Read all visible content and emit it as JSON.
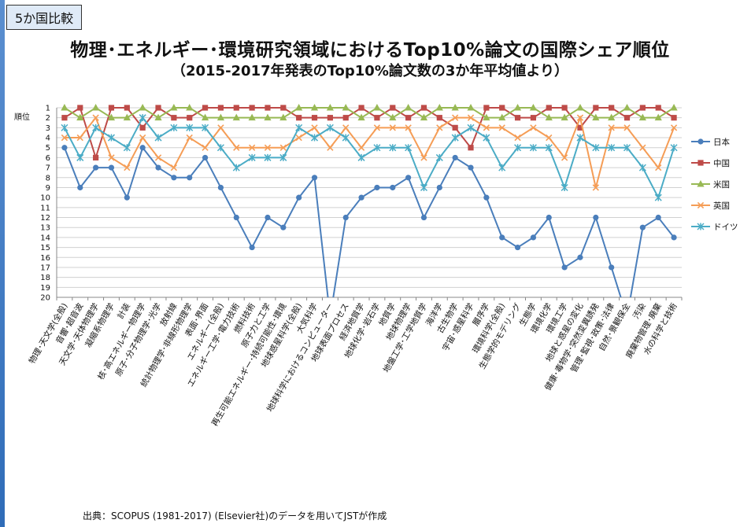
{
  "header": {
    "tag": "5か国比較",
    "title": "物理･エネルギー･環境研究領域におけるTop10%論文の国際シェア順位",
    "subtitle": "（2015-2017年発表のTop10%論文数の3か年平均値より）"
  },
  "footer": {
    "source": "出典：SCOPUS (1981-2017) (Elsevier社)のデータを用いてJSTが作成"
  },
  "chart_data": {
    "type": "line",
    "ylabel": "順位",
    "ylim": [
      1,
      20
    ],
    "y_inverted": true,
    "y_ticks": [
      1,
      2,
      3,
      4,
      5,
      6,
      7,
      8,
      9,
      10,
      11,
      12,
      13,
      14,
      15,
      16,
      17,
      18,
      19,
      20
    ],
    "grid": true,
    "legend_position": "right",
    "categories": [
      "物理･天文学(全般)",
      "音響･超音波",
      "天文学･天体物理学",
      "凝縮系物理学",
      "計装",
      "核･高エネルギー物理学",
      "原子･分子物理学･光学",
      "放射線",
      "統計物理学･非線形物理学",
      "表面･界面",
      "エネルギー(全般)",
      "エネルギー工学･電力技術",
      "燃料技術",
      "原子力と工学",
      "再生可能エネルギー･持続可能性･環境",
      "地球惑星科学(全般)",
      "大気科学",
      "地球科学におけるコンピューター",
      "地球表面プロセス",
      "経済地質学",
      "地球化学･岩石学",
      "地質学",
      "地球物理学",
      "地盤工学･工学地質学",
      "海洋学",
      "古生物学",
      "宇宙･惑星科学",
      "層序学",
      "環境科学(全般)",
      "生態学的モデリング",
      "生態学",
      "環境化学",
      "環境工学",
      "地球と惑星の変化",
      "健康･毒物学･突然変異誘発",
      "管理･監視･政策･法律",
      "自然･景観保全",
      "汚染",
      "廃棄物管理･廃棄",
      "水の科学と技術"
    ],
    "series": [
      {
        "name": "日本",
        "color": "#4a7ebb",
        "marker": "circle",
        "values": [
          5,
          9,
          7,
          7,
          10,
          5,
          7,
          8,
          8,
          6,
          9,
          12,
          15,
          12,
          13,
          10,
          8,
          22,
          12,
          10,
          9,
          9,
          8,
          12,
          9,
          6,
          7,
          10,
          14,
          15,
          14,
          12,
          17,
          16,
          12,
          17,
          22,
          13,
          12,
          14
        ]
      },
      {
        "name": "中国",
        "color": "#be4b48",
        "marker": "square",
        "values": [
          2,
          1,
          6,
          1,
          1,
          3,
          1,
          2,
          2,
          1,
          1,
          1,
          1,
          1,
          1,
          2,
          2,
          2,
          2,
          1,
          2,
          1,
          2,
          1,
          2,
          3,
          5,
          1,
          1,
          2,
          2,
          1,
          1,
          3,
          1,
          1,
          2,
          1,
          1,
          2
        ]
      },
      {
        "name": "米国",
        "color": "#98b954",
        "marker": "triangle",
        "values": [
          1,
          2,
          1,
          2,
          2,
          1,
          2,
          1,
          1,
          2,
          2,
          2,
          2,
          2,
          2,
          1,
          1,
          1,
          1,
          2,
          1,
          2,
          1,
          2,
          1,
          1,
          1,
          2,
          2,
          1,
          1,
          2,
          2,
          1,
          2,
          2,
          1,
          2,
          2,
          1
        ]
      },
      {
        "name": "英国",
        "color": "#f59d56",
        "marker": "x",
        "values": [
          4,
          4,
          2,
          6,
          7,
          4,
          6,
          7,
          4,
          5,
          3,
          5,
          5,
          5,
          5,
          4,
          3,
          5,
          3,
          5,
          3,
          3,
          3,
          6,
          3,
          2,
          2,
          3,
          3,
          4,
          3,
          4,
          6,
          2,
          9,
          3,
          3,
          5,
          7,
          3
        ]
      },
      {
        "name": "ドイツ",
        "color": "#4bacc6",
        "marker": "star",
        "values": [
          3,
          6,
          3,
          4,
          5,
          2,
          4,
          3,
          3,
          3,
          5,
          7,
          6,
          6,
          6,
          3,
          4,
          3,
          4,
          6,
          5,
          5,
          5,
          9,
          6,
          4,
          3,
          4,
          7,
          5,
          5,
          5,
          9,
          4,
          5,
          5,
          5,
          7,
          10,
          5
        ]
      }
    ]
  }
}
